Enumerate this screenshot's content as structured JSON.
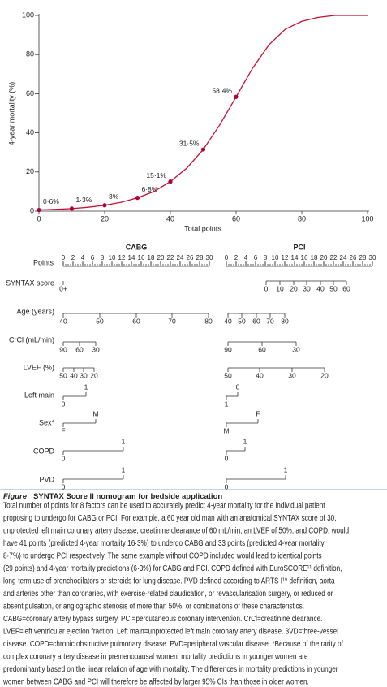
{
  "chart_data": {
    "type": "line",
    "ylabel": "4-year mortality (%)",
    "xlabel": "Total points",
    "xlim": [
      0,
      100
    ],
    "ylim": [
      0,
      100
    ],
    "xticks": [
      0,
      20,
      40,
      60,
      80,
      100
    ],
    "yticks": [
      0,
      20,
      40,
      60,
      80,
      100
    ],
    "series": [
      {
        "color": "#c8102e",
        "x": [
          0,
          5,
          10,
          15,
          20,
          25,
          30,
          35,
          40,
          45,
          50,
          55,
          60,
          65,
          70,
          75,
          80,
          85,
          90,
          95,
          100
        ],
        "values": [
          0.6,
          0.9,
          1.3,
          2,
          3,
          4.5,
          6.8,
          10,
          15.1,
          22,
          31.5,
          44,
          58.4,
          73,
          85,
          93,
          97,
          99,
          100,
          100,
          100
        ]
      },
      {
        "color": "#b0003a",
        "markers": true,
        "x": [
          0,
          10,
          20,
          30,
          40,
          50,
          60
        ],
        "values": [
          0.6,
          1.3,
          3,
          6.8,
          15.1,
          31.5,
          58.4
        ],
        "value_labels": [
          "0·6%",
          "1·3%",
          "3%",
          "6·8%",
          "15·1%",
          "31·5%",
          "58·4%"
        ]
      }
    ]
  },
  "nomogram": {
    "points_label": "Points",
    "row_labels": [
      "SYNTAX score",
      "Age (years)",
      "CrCl (mL/min)",
      "LVEF (%)",
      "Left main",
      "Sex*",
      "COPD",
      "PVD"
    ],
    "panels": [
      {
        "title": "CABG",
        "points": [
          0,
          2,
          4,
          6,
          8,
          10,
          12,
          14,
          16,
          18,
          20,
          22,
          24,
          26,
          28,
          30
        ],
        "scales": [
          [
            "0+"
          ],
          [
            40,
            50,
            60,
            70,
            80
          ],
          [
            90,
            60,
            30
          ],
          [
            50,
            40,
            30,
            20
          ],
          [
            0,
            1
          ],
          [
            "F",
            "M"
          ],
          [
            0,
            1
          ],
          [
            0,
            1
          ]
        ]
      },
      {
        "title": "PCI",
        "points": [
          0,
          2,
          4,
          6,
          8,
          10,
          12,
          14,
          16,
          18,
          20,
          22,
          24,
          26,
          28,
          30
        ],
        "scales": [
          [
            0,
            10,
            20,
            30,
            40,
            50,
            60
          ],
          [
            40,
            50,
            60,
            70,
            80
          ],
          [
            90,
            60,
            30
          ],
          [
            50,
            40,
            30,
            20
          ],
          [
            0,
            1
          ],
          [
            "M",
            "F"
          ],
          [
            0,
            1
          ],
          [
            0,
            1
          ]
        ]
      }
    ]
  },
  "caption": {
    "label": "Figure",
    "title": "SYNTAX Score II nomogram for bedside application",
    "lines": [
      "Total number of points for 8 factors can be used to accurately predict 4-year mortality for the individual patient",
      "proposing to undergo for CABG or PCI. For example, a 60 year old man with an anatomical SYNTAX score of 30,",
      "unprotected left main coronary artery disease, creatinine clearance of 60 mL/min, an LVEF of 50%, and COPD, would",
      "have 41 points (predicted 4-year mortality 16·3%) to undergo CABG and 33 points (predicted 4-year mortality",
      "8·7%) to undergo PCI respectively. The same example without COPD included would lead to identical points",
      "(29 points) and 4-year mortality predictions (6·3%) for CABG and PCI. COPD defined with EuroSCORE¹¹ definition,",
      "long-term use of bronchodilators or steroids for lung disease. PVD defined according to ARTS I¹⁹ definition, aorta",
      "and arteries other than coronaries, with exercise-related claudication, or revascularisation surgery, or reduced or",
      "absent pulsation, or angiographic stenosis of more than 50%, or combinations of these characteristics.",
      "CABG=coronary artery bypass surgery. PCI=percutaneous coronary intervention. CrCl=creatinine clearance.",
      "LVEF=left ventricular ejection fraction. Left main=unprotected left main coronary artery disease. 3VD=three-vessel",
      "disease. COPD=chronic obstructive pulmonary disease. PVD=peripheral vascular disease. *Because of the rarity of",
      "complex coronary artery disease in premenopausal women, mortality predictions in younger women are",
      "predominantly based on the linear relation of age with mortality. The differences in mortality predictions in younger",
      "women between CABG and PCI will therefore be affected by larger 95% CIs than those in older women."
    ]
  }
}
